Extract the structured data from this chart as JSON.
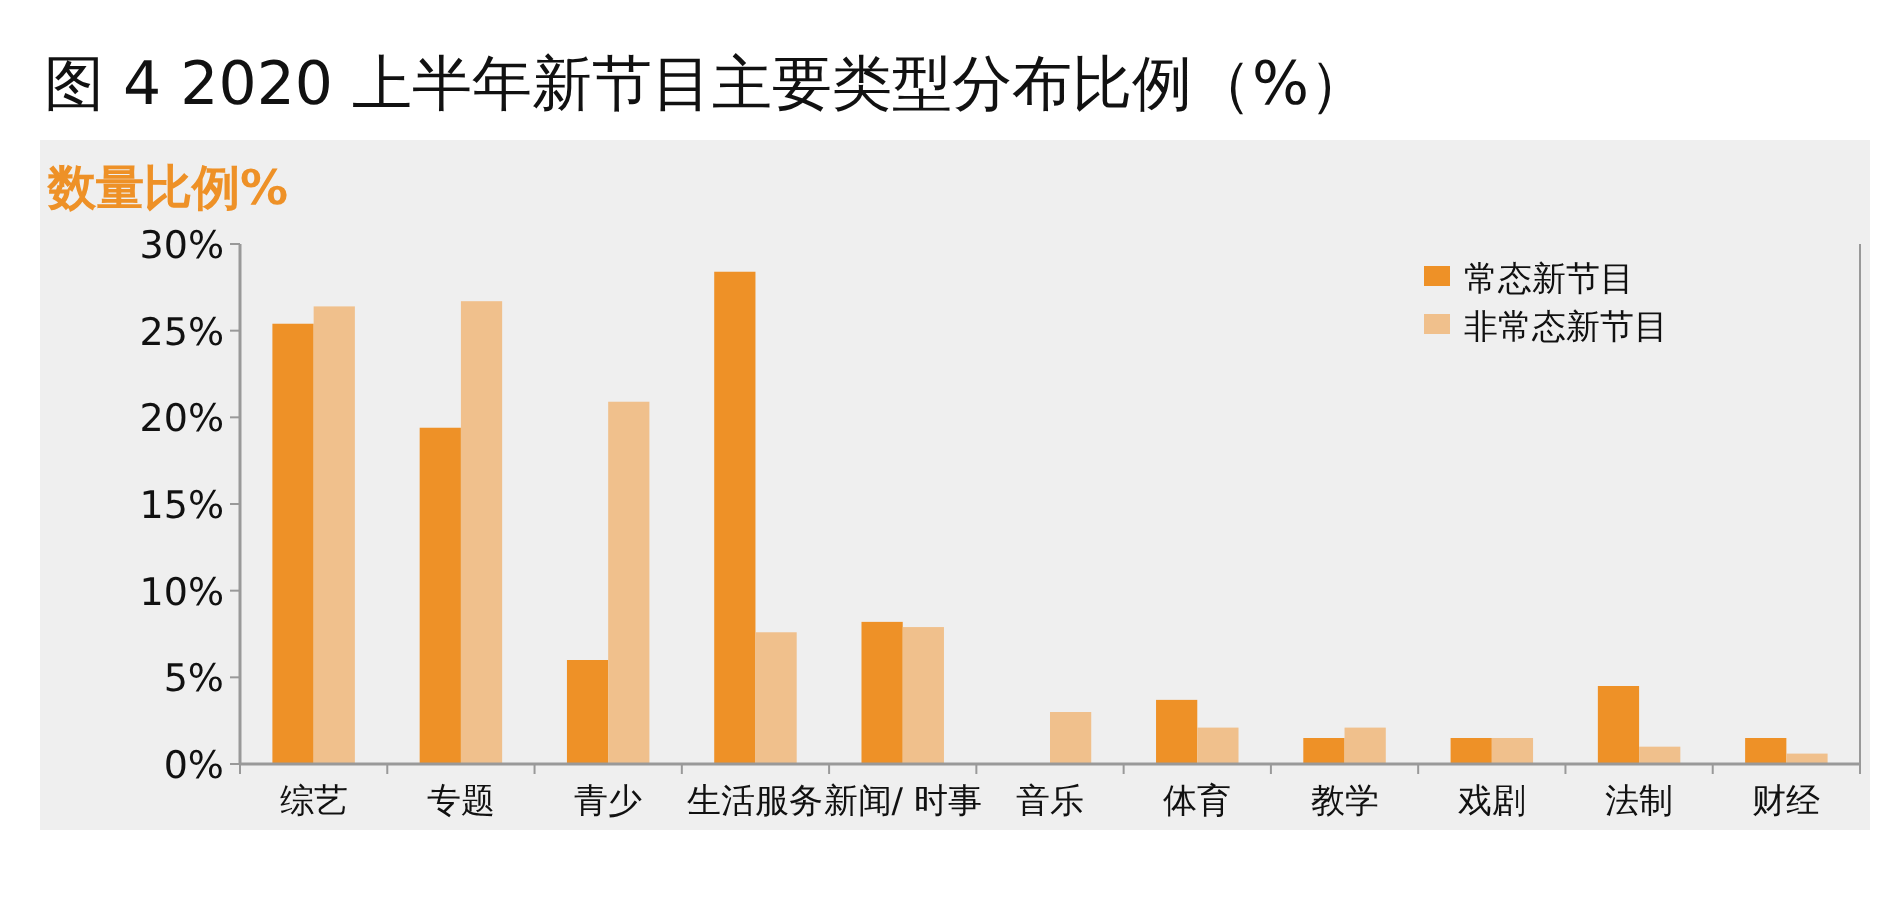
{
  "chart_data": {
    "type": "bar",
    "title": "图 4 2020 上半年新节目主要类型分布比例（%）",
    "subtitle": "数量比例%",
    "categories": [
      "综艺",
      "专题",
      "青少",
      "生活服务",
      "新闻/ 时事",
      "音乐",
      "体育",
      "教学",
      "戏剧",
      "法制",
      "财经"
    ],
    "series": [
      {
        "name": "常态新节目",
        "color": "#ee9127",
        "values": [
          25.4,
          19.4,
          6.0,
          28.4,
          8.2,
          0,
          3.7,
          1.5,
          1.5,
          4.5,
          1.5
        ]
      },
      {
        "name": "非常态新节目",
        "color": "#f0c08c",
        "values": [
          26.4,
          26.7,
          20.9,
          7.6,
          7.9,
          3.0,
          2.1,
          2.1,
          1.5,
          1.0,
          0.6
        ]
      }
    ],
    "ylim": [
      0,
      30
    ],
    "yticks": [
      {
        "value": 0,
        "label": "0%"
      },
      {
        "value": 5,
        "label": "5%"
      },
      {
        "value": 10,
        "label": "10%"
      },
      {
        "value": 15,
        "label": "15%"
      },
      {
        "value": 20,
        "label": "20%"
      },
      {
        "value": 25,
        "label": "25%"
      },
      {
        "value": 30,
        "label": "30%"
      }
    ],
    "legend": "top right"
  }
}
